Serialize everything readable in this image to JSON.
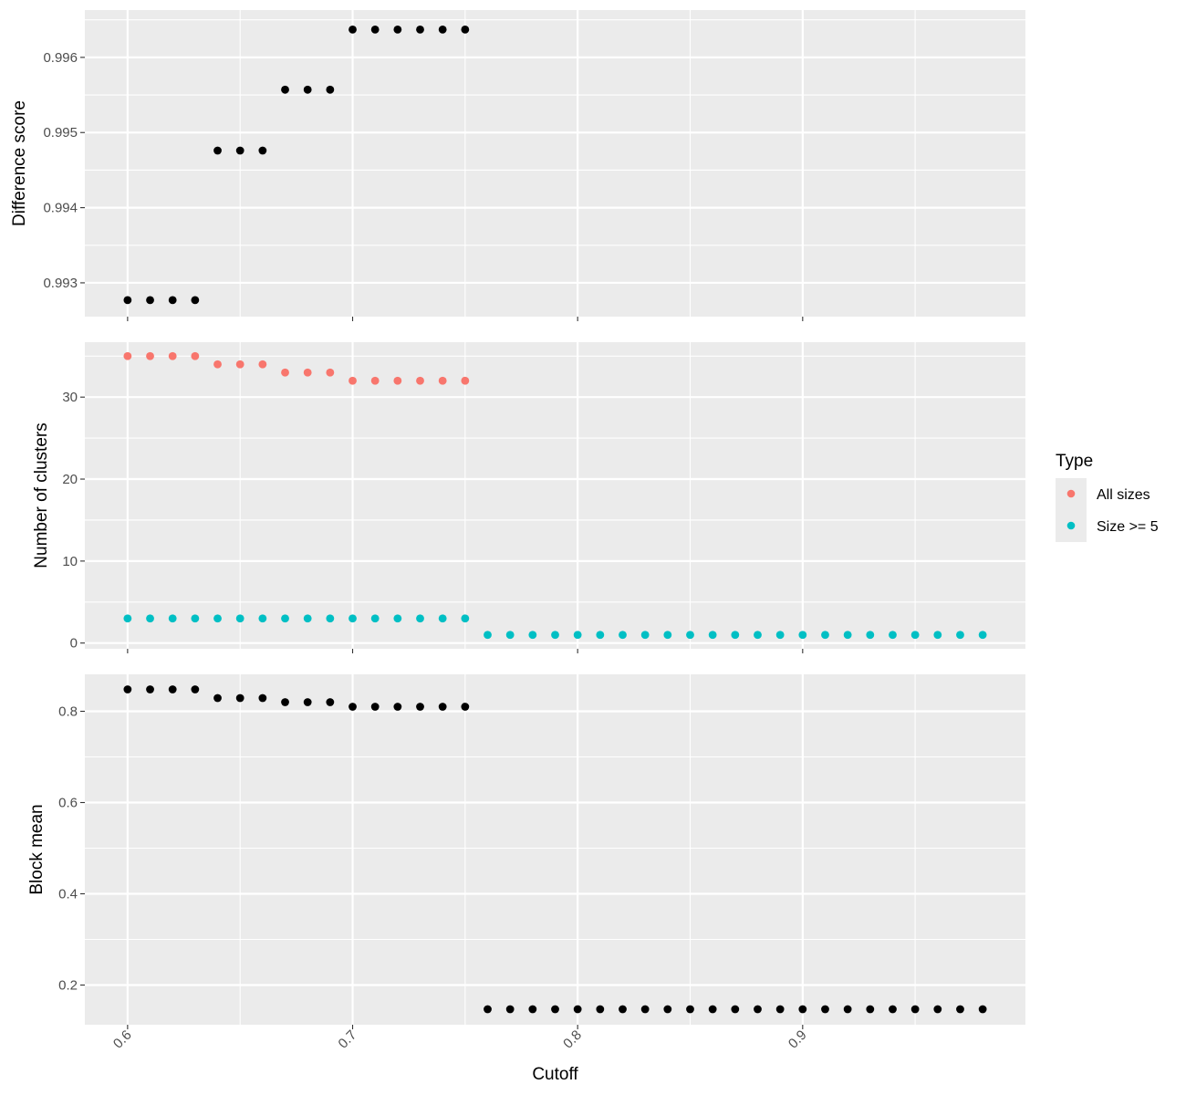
{
  "chart_data": [
    {
      "type": "scatter",
      "panel": "top",
      "ylabel": "Difference score",
      "xlim": [
        0.581,
        0.999
      ],
      "ylim": [
        0.99255,
        0.99663
      ],
      "yticks": [
        0.993,
        0.994,
        0.995,
        0.996
      ],
      "ytick_labels": [
        "0.993",
        "0.994",
        "0.995",
        "0.996"
      ],
      "grid": true,
      "series": [
        {
          "color": "#000000",
          "points": [
            [
              0.6,
              0.99277
            ],
            [
              0.61,
              0.99277
            ],
            [
              0.62,
              0.99277
            ],
            [
              0.63,
              0.99277
            ],
            [
              0.64,
              0.99476
            ],
            [
              0.65,
              0.99476
            ],
            [
              0.66,
              0.99476
            ],
            [
              0.67,
              0.99557
            ],
            [
              0.68,
              0.99557
            ],
            [
              0.69,
              0.99557
            ],
            [
              0.7,
              0.99637
            ],
            [
              0.71,
              0.99637
            ],
            [
              0.72,
              0.99637
            ],
            [
              0.73,
              0.99637
            ],
            [
              0.74,
              0.99637
            ],
            [
              0.75,
              0.99637
            ]
          ]
        }
      ]
    },
    {
      "type": "scatter",
      "panel": "middle",
      "ylabel": "Number of clusters",
      "xlim": [
        0.581,
        0.999
      ],
      "ylim": [
        -0.7,
        36.7
      ],
      "yticks": [
        0,
        10,
        20,
        30
      ],
      "ytick_labels": [
        "0",
        "10",
        "20",
        "30"
      ],
      "grid": true,
      "series": [
        {
          "name": "All sizes",
          "color": "#F8766D",
          "points": [
            [
              0.6,
              35
            ],
            [
              0.61,
              35
            ],
            [
              0.62,
              35
            ],
            [
              0.63,
              35
            ],
            [
              0.64,
              34
            ],
            [
              0.65,
              34
            ],
            [
              0.66,
              34
            ],
            [
              0.67,
              33
            ],
            [
              0.68,
              33
            ],
            [
              0.69,
              33
            ],
            [
              0.7,
              32
            ],
            [
              0.71,
              32
            ],
            [
              0.72,
              32
            ],
            [
              0.73,
              32
            ],
            [
              0.74,
              32
            ],
            [
              0.75,
              32
            ]
          ]
        },
        {
          "name": "Size >= 5",
          "color": "#00BFC4",
          "points": [
            [
              0.6,
              3
            ],
            [
              0.61,
              3
            ],
            [
              0.62,
              3
            ],
            [
              0.63,
              3
            ],
            [
              0.64,
              3
            ],
            [
              0.65,
              3
            ],
            [
              0.66,
              3
            ],
            [
              0.67,
              3
            ],
            [
              0.68,
              3
            ],
            [
              0.69,
              3
            ],
            [
              0.7,
              3
            ],
            [
              0.71,
              3
            ],
            [
              0.72,
              3
            ],
            [
              0.73,
              3
            ],
            [
              0.74,
              3
            ],
            [
              0.75,
              3
            ],
            [
              0.76,
              1
            ],
            [
              0.77,
              1
            ],
            [
              0.78,
              1
            ],
            [
              0.79,
              1
            ],
            [
              0.8,
              1
            ],
            [
              0.81,
              1
            ],
            [
              0.82,
              1
            ],
            [
              0.83,
              1
            ],
            [
              0.84,
              1
            ],
            [
              0.85,
              1
            ],
            [
              0.86,
              1
            ],
            [
              0.87,
              1
            ],
            [
              0.88,
              1
            ],
            [
              0.89,
              1
            ],
            [
              0.9,
              1
            ],
            [
              0.91,
              1
            ],
            [
              0.92,
              1
            ],
            [
              0.93,
              1
            ],
            [
              0.94,
              1
            ],
            [
              0.95,
              1
            ],
            [
              0.96,
              1
            ],
            [
              0.97,
              1
            ],
            [
              0.98,
              1
            ]
          ]
        }
      ]
    },
    {
      "type": "scatter",
      "panel": "bottom",
      "ylabel": "Block mean",
      "xlabel": "Cutoff",
      "xlim": [
        0.581,
        0.999
      ],
      "ylim": [
        0.113,
        0.881
      ],
      "yticks": [
        0.2,
        0.4,
        0.6,
        0.8
      ],
      "ytick_labels": [
        "0.2",
        "0.4",
        "0.6",
        "0.8"
      ],
      "xticks": [
        0.6,
        0.7,
        0.8,
        0.9
      ],
      "xtick_labels": [
        "0.6",
        "0.7",
        "0.8",
        "0.9"
      ],
      "grid": true,
      "series": [
        {
          "color": "#000000",
          "points": [
            [
              0.6,
              0.848
            ],
            [
              0.61,
              0.848
            ],
            [
              0.62,
              0.848
            ],
            [
              0.63,
              0.848
            ],
            [
              0.64,
              0.829
            ],
            [
              0.65,
              0.829
            ],
            [
              0.66,
              0.829
            ],
            [
              0.67,
              0.82
            ],
            [
              0.68,
              0.82
            ],
            [
              0.69,
              0.82
            ],
            [
              0.7,
              0.81
            ],
            [
              0.71,
              0.81
            ],
            [
              0.72,
              0.81
            ],
            [
              0.73,
              0.81
            ],
            [
              0.74,
              0.81
            ],
            [
              0.75,
              0.81
            ],
            [
              0.76,
              0.147
            ],
            [
              0.77,
              0.147
            ],
            [
              0.78,
              0.147
            ],
            [
              0.79,
              0.147
            ],
            [
              0.8,
              0.147
            ],
            [
              0.81,
              0.147
            ],
            [
              0.82,
              0.147
            ],
            [
              0.83,
              0.147
            ],
            [
              0.84,
              0.147
            ],
            [
              0.85,
              0.147
            ],
            [
              0.86,
              0.147
            ],
            [
              0.87,
              0.147
            ],
            [
              0.88,
              0.147
            ],
            [
              0.89,
              0.147
            ],
            [
              0.9,
              0.147
            ],
            [
              0.91,
              0.147
            ],
            [
              0.92,
              0.147
            ],
            [
              0.93,
              0.147
            ],
            [
              0.94,
              0.147
            ],
            [
              0.95,
              0.147
            ],
            [
              0.96,
              0.147
            ],
            [
              0.97,
              0.147
            ],
            [
              0.98,
              0.147
            ]
          ]
        }
      ]
    }
  ],
  "legend": {
    "title": "Type",
    "position": "right",
    "items": [
      {
        "label": "All sizes",
        "color": "#F8766D"
      },
      {
        "label": "Size >= 5",
        "color": "#00BFC4"
      }
    ]
  }
}
